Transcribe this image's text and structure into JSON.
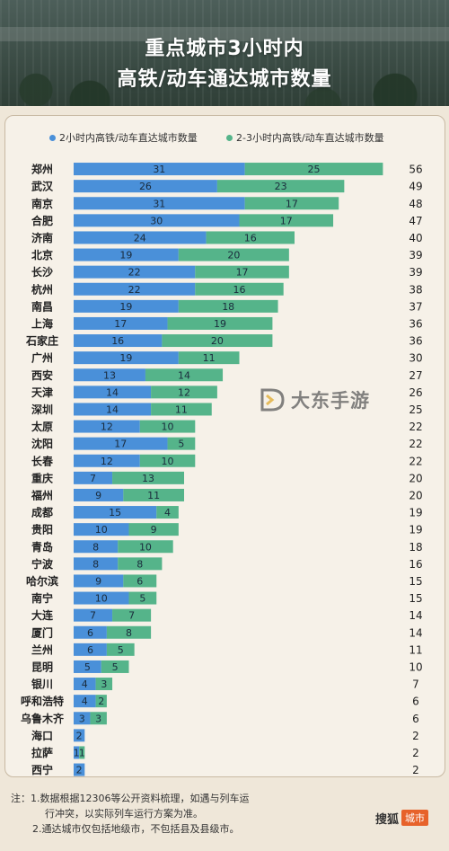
{
  "header": {
    "title_line1": "重点城市3小时内",
    "title_line2": "高铁/动车通达城市数量"
  },
  "legend": {
    "series1": "2小时内高铁/动车直达城市数量",
    "series2": "2-3小时内高铁/动车直达城市数量"
  },
  "colors": {
    "series1": "#4a90d9",
    "series2": "#55b48a",
    "background": "#efe7d9",
    "brand": "#e7622a"
  },
  "chart_data": {
    "type": "bar",
    "orientation": "horizontal",
    "stacked": true,
    "categories": [
      "郑州",
      "武汉",
      "南京",
      "合肥",
      "济南",
      "北京",
      "长沙",
      "杭州",
      "南昌",
      "上海",
      "石家庄",
      "广州",
      "西安",
      "天津",
      "深圳",
      "太原",
      "沈阳",
      "长春",
      "重庆",
      "福州",
      "成都",
      "贵阳",
      "青岛",
      "宁波",
      "哈尔滨",
      "南宁",
      "大连",
      "厦门",
      "兰州",
      "昆明",
      "银川",
      "呼和浩特",
      "乌鲁木齐",
      "海口",
      "拉萨",
      "西宁"
    ],
    "series": [
      {
        "name": "2小时内高铁/动车直达城市数量",
        "values": [
          31,
          26,
          31,
          30,
          24,
          19,
          22,
          22,
          19,
          17,
          16,
          19,
          13,
          14,
          14,
          12,
          17,
          12,
          7,
          9,
          15,
          10,
          8,
          8,
          9,
          10,
          7,
          6,
          6,
          5,
          4,
          4,
          3,
          2,
          1,
          2
        ]
      },
      {
        "name": "2-3小时内高铁/动车直达城市数量",
        "values": [
          25,
          23,
          17,
          17,
          16,
          20,
          17,
          16,
          18,
          19,
          20,
          11,
          14,
          12,
          11,
          10,
          5,
          10,
          13,
          11,
          4,
          9,
          10,
          8,
          6,
          5,
          7,
          8,
          5,
          5,
          3,
          2,
          3,
          0,
          1,
          0
        ]
      }
    ],
    "totals": [
      56,
      49,
      48,
      47,
      40,
      39,
      39,
      38,
      37,
      36,
      36,
      30,
      27,
      26,
      25,
      22,
      22,
      22,
      20,
      20,
      19,
      19,
      18,
      16,
      15,
      15,
      14,
      14,
      11,
      10,
      7,
      6,
      6,
      2,
      2,
      2
    ],
    "xlim": [
      0,
      56
    ],
    "legend_position": "top",
    "grid": false
  },
  "notes": {
    "line1": "注：1.数据根据12306等公开资料梳理，如遇与列车运",
    "line1b": "行冲突，以实际列车运行方案为准。",
    "line2": "2.通达城市仅包括地级市，不包括县及县级市。"
  },
  "brand": {
    "name": "搜狐",
    "tag": "城市"
  },
  "watermark": {
    "text": "大东手游",
    "icon": "d-logo-icon"
  }
}
